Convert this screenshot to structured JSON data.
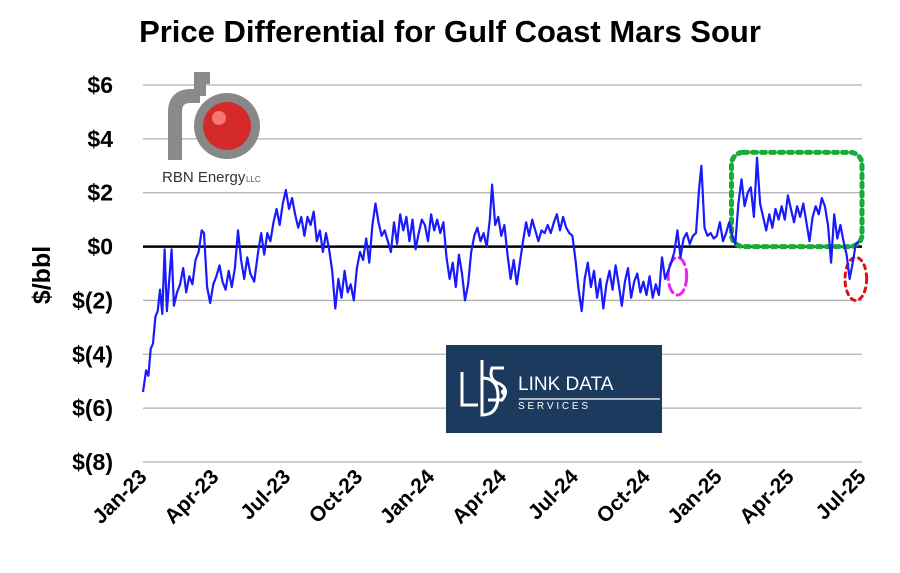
{
  "chart_data": {
    "type": "line",
    "title": "Price Differential for Gulf Coast Mars Sour",
    "ylabel": "$/bbl",
    "xlabel": "",
    "ylim": [
      -8,
      6
    ],
    "y_ticks": [
      6,
      4,
      2,
      0,
      -2,
      -4,
      -6,
      -8
    ],
    "y_tick_labels": [
      "$6",
      "$4",
      "$2",
      "$0",
      "$(2)",
      "$(4)",
      "$(6)",
      "$(8)"
    ],
    "x_tick_labels": [
      "Jan-23",
      "Apr-23",
      "Jul-23",
      "Oct-23",
      "Jan-24",
      "Apr-24",
      "Jul-24",
      "Oct-24",
      "Jan-25",
      "Apr-25",
      "Jul-25"
    ],
    "grid": true,
    "series": [
      {
        "color": "#1a1aff",
        "points": [
          [
            "2023-01-01",
            -5.4
          ],
          [
            "2023-01-05",
            -4.6
          ],
          [
            "2023-01-08",
            -4.8
          ],
          [
            "2023-01-11",
            -3.8
          ],
          [
            "2023-01-14",
            -3.6
          ],
          [
            "2023-01-17",
            -2.6
          ],
          [
            "2023-01-20",
            -2.4
          ],
          [
            "2023-01-23",
            -1.6
          ],
          [
            "2023-01-26",
            -2.5
          ],
          [
            "2023-01-29",
            -0.1
          ],
          [
            "2023-02-01",
            -2.4
          ],
          [
            "2023-02-04",
            -1.2
          ],
          [
            "2023-02-07",
            -0.1
          ],
          [
            "2023-02-10",
            -2.2
          ],
          [
            "2023-02-14",
            -1.7
          ],
          [
            "2023-02-18",
            -1.4
          ],
          [
            "2023-02-22",
            -0.8
          ],
          [
            "2023-02-26",
            -1.7
          ],
          [
            "2023-03-02",
            -1.1
          ],
          [
            "2023-03-06",
            -1.4
          ],
          [
            "2023-03-10",
            -0.5
          ],
          [
            "2023-03-14",
            -0.2
          ],
          [
            "2023-03-18",
            0.6
          ],
          [
            "2023-03-21",
            0.5
          ],
          [
            "2023-03-25",
            -1.5
          ],
          [
            "2023-03-29",
            -2.1
          ],
          [
            "2023-04-02",
            -1.4
          ],
          [
            "2023-04-06",
            -1.1
          ],
          [
            "2023-04-10",
            -0.7
          ],
          [
            "2023-04-14",
            -1.3
          ],
          [
            "2023-04-18",
            -1.6
          ],
          [
            "2023-04-22",
            -0.9
          ],
          [
            "2023-04-26",
            -1.5
          ],
          [
            "2023-04-30",
            -0.8
          ],
          [
            "2023-05-04",
            0.6
          ],
          [
            "2023-05-08",
            -0.5
          ],
          [
            "2023-05-12",
            -1.2
          ],
          [
            "2023-05-16",
            -0.4
          ],
          [
            "2023-05-20",
            -1.0
          ],
          [
            "2023-05-25",
            -1.3
          ],
          [
            "2023-05-30",
            -0.2
          ],
          [
            "2023-06-03",
            0.5
          ],
          [
            "2023-06-07",
            -0.3
          ],
          [
            "2023-06-11",
            0.5
          ],
          [
            "2023-06-15",
            0.2
          ],
          [
            "2023-06-19",
            0.9
          ],
          [
            "2023-06-23",
            1.4
          ],
          [
            "2023-06-27",
            0.8
          ],
          [
            "2023-07-01",
            1.6
          ],
          [
            "2023-07-05",
            2.1
          ],
          [
            "2023-07-09",
            1.4
          ],
          [
            "2023-07-13",
            1.8
          ],
          [
            "2023-07-17",
            1.2
          ],
          [
            "2023-07-21",
            0.7
          ],
          [
            "2023-07-25",
            1.1
          ],
          [
            "2023-07-29",
            0.4
          ],
          [
            "2023-08-02",
            1.1
          ],
          [
            "2023-08-06",
            0.8
          ],
          [
            "2023-08-10",
            1.3
          ],
          [
            "2023-08-14",
            0.2
          ],
          [
            "2023-08-18",
            0.6
          ],
          [
            "2023-08-22",
            -0.2
          ],
          [
            "2023-08-26",
            0.5
          ],
          [
            "2023-08-30",
            -0.1
          ],
          [
            "2023-09-03",
            -0.9
          ],
          [
            "2023-09-07",
            -2.3
          ],
          [
            "2023-09-11",
            -1.2
          ],
          [
            "2023-09-15",
            -1.9
          ],
          [
            "2023-09-19",
            -0.9
          ],
          [
            "2023-09-23",
            -1.7
          ],
          [
            "2023-09-27",
            -1.4
          ],
          [
            "2023-10-01",
            -2.0
          ],
          [
            "2023-10-05",
            -0.8
          ],
          [
            "2023-10-09",
            -0.2
          ],
          [
            "2023-10-13",
            -0.5
          ],
          [
            "2023-10-17",
            0.3
          ],
          [
            "2023-10-21",
            -0.6
          ],
          [
            "2023-10-25",
            0.8
          ],
          [
            "2023-10-29",
            1.6
          ],
          [
            "2023-11-02",
            0.9
          ],
          [
            "2023-11-06",
            0.4
          ],
          [
            "2023-11-10",
            0.6
          ],
          [
            "2023-11-14",
            0.2
          ],
          [
            "2023-11-18",
            -0.2
          ],
          [
            "2023-11-22",
            0.9
          ],
          [
            "2023-11-26",
            0.1
          ],
          [
            "2023-11-30",
            1.2
          ],
          [
            "2023-12-04",
            0.6
          ],
          [
            "2023-12-08",
            1.1
          ],
          [
            "2023-12-12",
            0.2
          ],
          [
            "2023-12-16",
            1.0
          ],
          [
            "2023-12-20",
            -0.1
          ],
          [
            "2023-12-24",
            0.5
          ],
          [
            "2023-12-28",
            1.0
          ],
          [
            "2024-01-01",
            0.8
          ],
          [
            "2024-01-05",
            0.2
          ],
          [
            "2024-01-09",
            1.2
          ],
          [
            "2024-01-13",
            0.6
          ],
          [
            "2024-01-17",
            1.0
          ],
          [
            "2024-01-21",
            0.5
          ],
          [
            "2024-01-25",
            0.9
          ],
          [
            "2024-01-29",
            -0.4
          ],
          [
            "2024-02-02",
            -1.2
          ],
          [
            "2024-02-06",
            -0.6
          ],
          [
            "2024-02-10",
            -1.5
          ],
          [
            "2024-02-14",
            -0.3
          ],
          [
            "2024-02-18",
            -1.0
          ],
          [
            "2024-02-22",
            -2.0
          ],
          [
            "2024-02-26",
            -1.4
          ],
          [
            "2024-03-01",
            -0.2
          ],
          [
            "2024-03-05",
            0.4
          ],
          [
            "2024-03-09",
            0.7
          ],
          [
            "2024-03-13",
            0.2
          ],
          [
            "2024-03-17",
            0.5
          ],
          [
            "2024-03-21",
            0.0
          ],
          [
            "2024-03-25",
            1.0
          ],
          [
            "2024-03-28",
            2.3
          ],
          [
            "2024-04-01",
            0.8
          ],
          [
            "2024-04-05",
            1.1
          ],
          [
            "2024-04-09",
            0.4
          ],
          [
            "2024-04-13",
            0.8
          ],
          [
            "2024-04-17",
            -0.3
          ],
          [
            "2024-04-21",
            -1.2
          ],
          [
            "2024-04-25",
            -0.5
          ],
          [
            "2024-04-29",
            -1.4
          ],
          [
            "2024-05-03",
            -0.6
          ],
          [
            "2024-05-07",
            0.2
          ],
          [
            "2024-05-11",
            0.9
          ],
          [
            "2024-05-15",
            0.4
          ],
          [
            "2024-05-19",
            1.0
          ],
          [
            "2024-05-23",
            0.6
          ],
          [
            "2024-05-27",
            0.2
          ],
          [
            "2024-05-31",
            0.6
          ],
          [
            "2024-06-04",
            0.5
          ],
          [
            "2024-06-08",
            0.8
          ],
          [
            "2024-06-12",
            0.5
          ],
          [
            "2024-06-16",
            0.9
          ],
          [
            "2024-06-20",
            1.2
          ],
          [
            "2024-06-24",
            0.6
          ],
          [
            "2024-06-28",
            1.1
          ],
          [
            "2024-07-02",
            0.7
          ],
          [
            "2024-07-06",
            0.5
          ],
          [
            "2024-07-10",
            0.4
          ],
          [
            "2024-07-14",
            -0.5
          ],
          [
            "2024-07-18",
            -1.6
          ],
          [
            "2024-07-22",
            -2.4
          ],
          [
            "2024-07-26",
            -1.2
          ],
          [
            "2024-07-30",
            -0.6
          ],
          [
            "2024-08-03",
            -1.5
          ],
          [
            "2024-08-07",
            -0.9
          ],
          [
            "2024-08-11",
            -1.9
          ],
          [
            "2024-08-15",
            -1.2
          ],
          [
            "2024-08-19",
            -2.3
          ],
          [
            "2024-08-23",
            -1.4
          ],
          [
            "2024-08-27",
            -0.9
          ],
          [
            "2024-08-31",
            -1.6
          ],
          [
            "2024-09-04",
            -0.7
          ],
          [
            "2024-09-08",
            -1.4
          ],
          [
            "2024-09-12",
            -2.2
          ],
          [
            "2024-09-16",
            -1.3
          ],
          [
            "2024-09-20",
            -0.8
          ],
          [
            "2024-09-24",
            -1.9
          ],
          [
            "2024-09-28",
            -1.3
          ],
          [
            "2024-10-02",
            -1.0
          ],
          [
            "2024-10-06",
            -1.7
          ],
          [
            "2024-10-10",
            -1.3
          ],
          [
            "2024-10-14",
            -1.8
          ],
          [
            "2024-10-18",
            -1.1
          ],
          [
            "2024-10-22",
            -1.9
          ],
          [
            "2024-10-26",
            -1.4
          ],
          [
            "2024-10-30",
            -1.8
          ],
          [
            "2024-11-03",
            -0.4
          ],
          [
            "2024-11-07",
            -1.2
          ],
          [
            "2024-11-11",
            -0.9
          ],
          [
            "2024-11-15",
            -0.6
          ],
          [
            "2024-11-19",
            -0.2
          ],
          [
            "2024-11-23",
            0.6
          ],
          [
            "2024-11-27",
            -0.4
          ],
          [
            "2024-12-01",
            0.3
          ],
          [
            "2024-12-05",
            0.5
          ],
          [
            "2024-12-09",
            0.1
          ],
          [
            "2024-12-13",
            0.4
          ],
          [
            "2024-12-17",
            0.5
          ],
          [
            "2024-12-21",
            2.1
          ],
          [
            "2024-12-24",
            3.0
          ],
          [
            "2024-12-28",
            0.7
          ],
          [
            "2025-01-01",
            0.4
          ],
          [
            "2025-01-05",
            0.5
          ],
          [
            "2025-01-09",
            0.3
          ],
          [
            "2025-01-13",
            0.4
          ],
          [
            "2025-01-17",
            0.9
          ],
          [
            "2025-01-21",
            0.2
          ],
          [
            "2025-01-25",
            0.5
          ],
          [
            "2025-01-29",
            0.9
          ],
          [
            "2025-02-02",
            0.4
          ],
          [
            "2025-02-06",
            0.1
          ],
          [
            "2025-02-10",
            1.6
          ],
          [
            "2025-02-14",
            2.5
          ],
          [
            "2025-02-18",
            1.5
          ],
          [
            "2025-02-22",
            2.0
          ],
          [
            "2025-02-26",
            2.2
          ],
          [
            "2025-03-02",
            1.1
          ],
          [
            "2025-03-06",
            3.3
          ],
          [
            "2025-03-10",
            1.6
          ],
          [
            "2025-03-14",
            1.1
          ],
          [
            "2025-03-18",
            0.6
          ],
          [
            "2025-03-22",
            1.2
          ],
          [
            "2025-03-26",
            0.7
          ],
          [
            "2025-03-30",
            1.4
          ],
          [
            "2025-04-03",
            1.0
          ],
          [
            "2025-04-07",
            1.5
          ],
          [
            "2025-04-11",
            1.0
          ],
          [
            "2025-04-15",
            1.9
          ],
          [
            "2025-04-19",
            1.4
          ],
          [
            "2025-04-23",
            0.9
          ],
          [
            "2025-04-27",
            1.5
          ],
          [
            "2025-05-01",
            1.1
          ],
          [
            "2025-05-05",
            1.6
          ],
          [
            "2025-05-09",
            0.9
          ],
          [
            "2025-05-13",
            0.2
          ],
          [
            "2025-05-17",
            1.1
          ],
          [
            "2025-05-21",
            1.5
          ],
          [
            "2025-05-25",
            1.2
          ],
          [
            "2025-05-29",
            1.8
          ],
          [
            "2025-06-02",
            1.5
          ],
          [
            "2025-06-06",
            0.8
          ],
          [
            "2025-06-10",
            -0.6
          ],
          [
            "2025-06-14",
            1.2
          ],
          [
            "2025-06-18",
            0.3
          ],
          [
            "2025-06-22",
            0.8
          ],
          [
            "2025-06-26",
            0.2
          ],
          [
            "2025-06-30",
            -0.3
          ],
          [
            "2025-07-04",
            -1.2
          ],
          [
            "2025-07-08",
            -0.6
          ],
          [
            "2025-07-12",
            0.1
          ],
          [
            "2025-07-16",
            0.2
          ]
        ]
      }
    ],
    "annotations": [
      {
        "shape": "rounded-rect",
        "style": "dotted",
        "color": "#1aaa3a",
        "x_range": [
          "2025-02-01",
          "2025-07-20"
        ],
        "y_range": [
          0.0,
          3.5
        ]
      },
      {
        "shape": "ellipse",
        "style": "dashed",
        "color": "#ee22ee",
        "x_center": "2024-11-23",
        "y_center": -1.1,
        "x_halfwidth_days": 12,
        "y_halfwidth": 0.7
      },
      {
        "shape": "ellipse",
        "style": "dotted",
        "color": "#dd1111",
        "x_center": "2025-07-12",
        "y_center": -1.2,
        "x_halfwidth_days": 14,
        "y_halfwidth": 0.8
      }
    ]
  },
  "logos": {
    "rbn": {
      "brand": "RBN Energy",
      "suffix": "LLC"
    },
    "link": {
      "brand": "LINK DATA",
      "tagline": "S E R V I C E S"
    }
  },
  "colors": {
    "line": "#1a1aff",
    "grid": "#b0b0b0",
    "zero_line": "#000000",
    "link_bg": "#1c3a5e"
  }
}
